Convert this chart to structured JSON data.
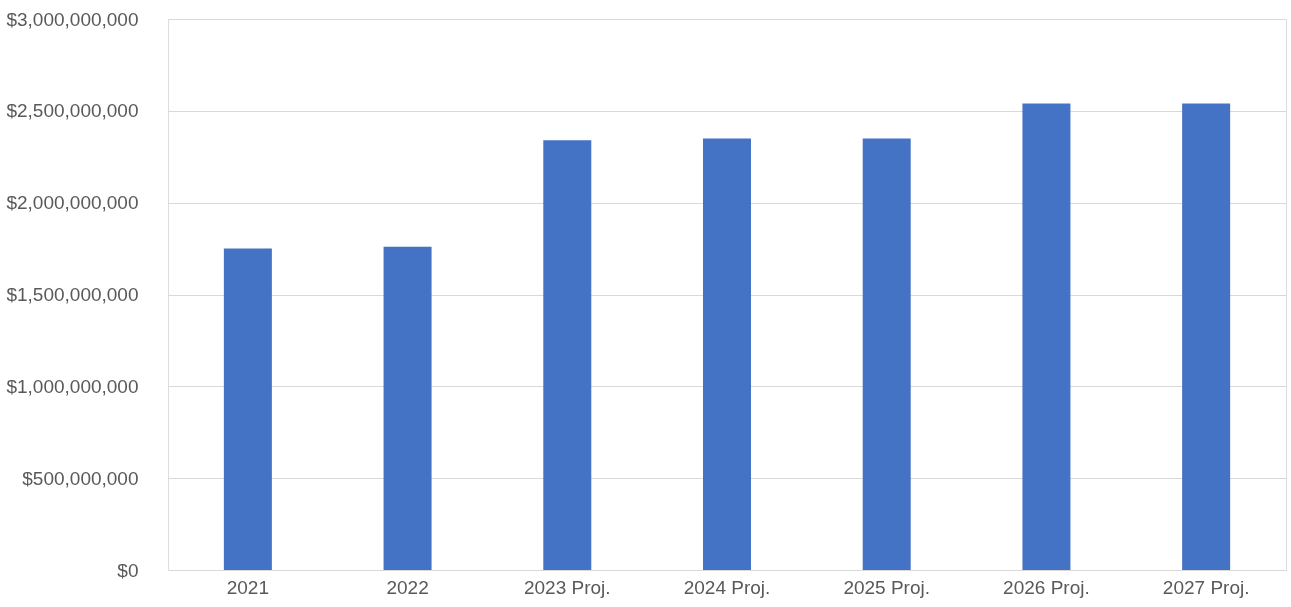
{
  "chart_data": {
    "type": "bar",
    "categories": [
      "2021",
      "2022",
      "2023 Proj.",
      "2024 Proj.",
      "2025 Proj.",
      "2026 Proj.",
      "2027 Proj."
    ],
    "values": [
      1750000000,
      1760000000,
      2340000000,
      2350000000,
      2350000000,
      2540000000,
      2540000000
    ],
    "color": "#4472c4",
    "ylim": [
      0,
      3000000000
    ],
    "yticks": [
      {
        "value": 0,
        "label": "$0"
      },
      {
        "value": 500000000,
        "label": "$500,000,000"
      },
      {
        "value": 1000000000,
        "label": "$1,000,000,000"
      },
      {
        "value": 1500000000,
        "label": "$1,500,000,000"
      },
      {
        "value": 2000000000,
        "label": "$2,000,000,000"
      },
      {
        "value": 2500000000,
        "label": "$2,500,000,000"
      },
      {
        "value": 3000000000,
        "label": "$3,000,000,000"
      }
    ],
    "grid": "y"
  }
}
